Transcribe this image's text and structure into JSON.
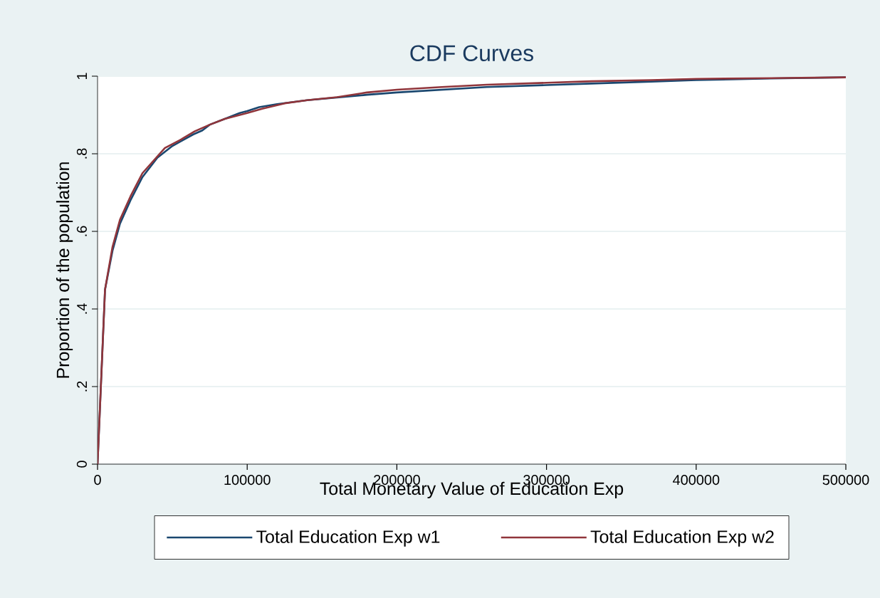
{
  "chart_data": {
    "type": "line",
    "title": "CDF Curves",
    "xlabel": "Total Monetary Value of Education Exp",
    "ylabel": "Proportion of the population",
    "xlim": [
      0,
      500000
    ],
    "xticks": [
      0,
      100000,
      200000,
      300000,
      400000,
      500000
    ],
    "ylim": [
      0,
      1
    ],
    "yticks": [
      0,
      {
        "value": 0.2,
        "label": ".2"
      },
      {
        "value": 0.4,
        "label": ".4"
      },
      {
        "value": 0.6,
        "label": ".6"
      },
      {
        "value": 0.8,
        "label": ".8"
      },
      1
    ],
    "grid": "y",
    "legend": "bottom",
    "marker": "none",
    "line_style": "solid",
    "series": [
      {
        "name": "Total Education Exp w1",
        "color": "#1a476f",
        "x": [
          0,
          5000,
          10000,
          15000,
          22000,
          30000,
          40000,
          50000,
          57000,
          64000,
          70000,
          75000,
          85000,
          95000,
          100000,
          108000,
          120000,
          140000,
          160000,
          180000,
          200000,
          230000,
          260000,
          300000,
          330000,
          370000,
          400000,
          450000,
          500000
        ],
        "values": [
          0,
          0.45,
          0.55,
          0.62,
          0.68,
          0.74,
          0.79,
          0.82,
          0.835,
          0.85,
          0.86,
          0.875,
          0.89,
          0.905,
          0.91,
          0.92,
          0.928,
          0.938,
          0.945,
          0.952,
          0.958,
          0.965,
          0.972,
          0.977,
          0.981,
          0.986,
          0.99,
          0.994,
          0.997
        ]
      },
      {
        "name": "Total Education Exp w2",
        "color": "#90353b",
        "x": [
          0,
          5000,
          10000,
          15000,
          22000,
          30000,
          45000,
          55000,
          65000,
          75000,
          85000,
          100000,
          110000,
          125000,
          140000,
          160000,
          180000,
          200000,
          230000,
          260000,
          300000,
          330000,
          370000,
          400000,
          450000,
          500000
        ],
        "values": [
          0,
          0.45,
          0.56,
          0.63,
          0.69,
          0.75,
          0.815,
          0.835,
          0.858,
          0.875,
          0.89,
          0.905,
          0.916,
          0.93,
          0.938,
          0.946,
          0.958,
          0.965,
          0.972,
          0.978,
          0.983,
          0.987,
          0.99,
          0.993,
          0.995,
          0.997
        ]
      }
    ]
  }
}
